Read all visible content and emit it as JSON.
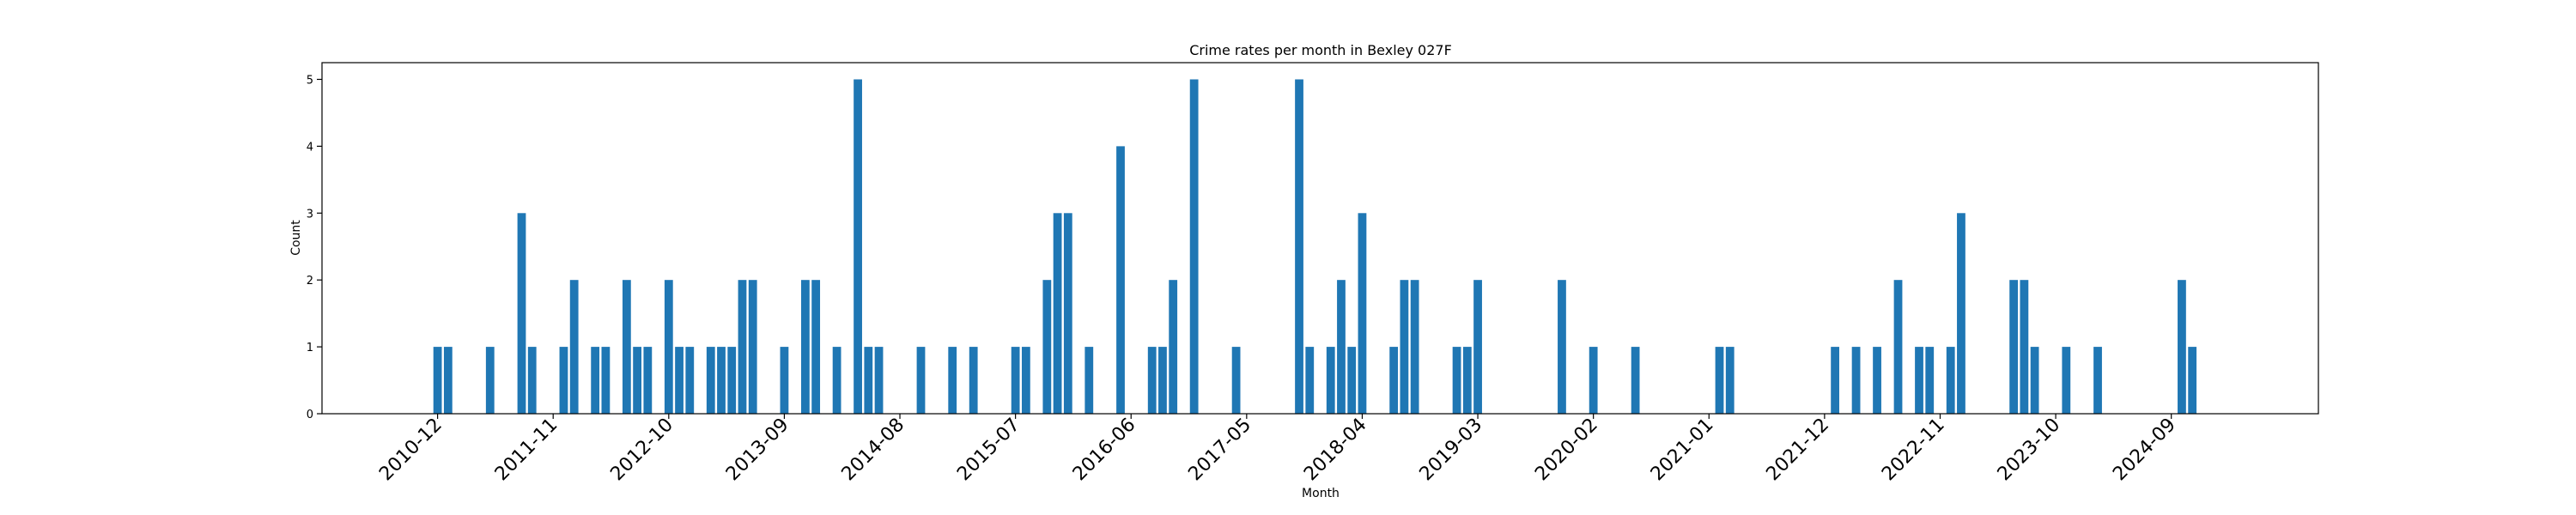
{
  "chart_data": {
    "type": "bar",
    "title": "Crime rates per month in Bexley 027F",
    "xlabel": "Month",
    "ylabel": "Count",
    "ylim": [
      0,
      5.25
    ],
    "yticks": [
      0,
      1,
      2,
      3,
      4,
      5
    ],
    "xticks": [
      "2010-12",
      "2011-11",
      "2012-10",
      "2013-09",
      "2014-08",
      "2015-07",
      "2016-06",
      "2017-05",
      "2018-04",
      "2019-03",
      "2020-02",
      "2021-01",
      "2021-12",
      "2022-11",
      "2023-10",
      "2024-09"
    ],
    "x_range": [
      "2010-01",
      "2025-11"
    ],
    "grid": false,
    "legend": "none",
    "color": "#1f77b4",
    "x": [
      "2010-12",
      "2011-01",
      "2011-05",
      "2011-08",
      "2011-09",
      "2011-12",
      "2012-01",
      "2012-03",
      "2012-04",
      "2012-06",
      "2012-07",
      "2012-08",
      "2012-10",
      "2012-11",
      "2012-12",
      "2013-02",
      "2013-03",
      "2013-04",
      "2013-05",
      "2013-06",
      "2013-09",
      "2013-11",
      "2013-12",
      "2014-02",
      "2014-04",
      "2014-05",
      "2014-06",
      "2014-10",
      "2015-01",
      "2015-03",
      "2015-07",
      "2015-08",
      "2015-10",
      "2015-11",
      "2015-12",
      "2016-02",
      "2016-05",
      "2016-08",
      "2016-09",
      "2016-10",
      "2016-12",
      "2017-04",
      "2017-10",
      "2017-11",
      "2018-01",
      "2018-02",
      "2018-03",
      "2018-04",
      "2018-07",
      "2018-08",
      "2018-09",
      "2019-01",
      "2019-02",
      "2019-03",
      "2019-11",
      "2020-02",
      "2020-06",
      "2021-02",
      "2021-03",
      "2022-01",
      "2022-03",
      "2022-05",
      "2022-07",
      "2022-09",
      "2022-10",
      "2022-12",
      "2023-01",
      "2023-06",
      "2023-07",
      "2023-08",
      "2023-11",
      "2024-02",
      "2024-10",
      "2024-11"
    ],
    "values": [
      1,
      1,
      1,
      3,
      1,
      1,
      2,
      1,
      1,
      2,
      1,
      1,
      2,
      1,
      1,
      1,
      1,
      1,
      2,
      2,
      1,
      2,
      2,
      1,
      5,
      1,
      1,
      1,
      1,
      1,
      1,
      1,
      2,
      3,
      3,
      1,
      4,
      1,
      1,
      2,
      5,
      1,
      5,
      1,
      1,
      2,
      1,
      3,
      1,
      2,
      2,
      1,
      1,
      2,
      2,
      1,
      1,
      1,
      1,
      1,
      1,
      1,
      2,
      1,
      1,
      1,
      3,
      2,
      2,
      1,
      1,
      1,
      2,
      1
    ]
  }
}
